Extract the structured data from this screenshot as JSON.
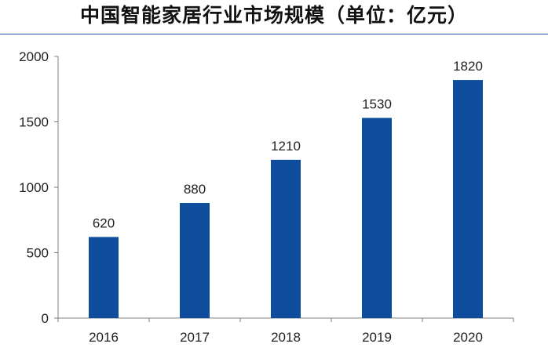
{
  "chart_data": {
    "type": "bar",
    "title": "中国智能家居行业市场规模（单位：亿元）",
    "categories": [
      "2016",
      "2017",
      "2018",
      "2019",
      "2020"
    ],
    "values": [
      620,
      880,
      1210,
      1530,
      1820
    ],
    "data_labels": [
      "620",
      "880",
      "1210",
      "1530",
      "1820"
    ],
    "y_ticks": [
      "0",
      "500",
      "1000",
      "1500",
      "2000"
    ],
    "ylim": [
      0,
      2000
    ],
    "xlabel": "",
    "ylabel": "",
    "grid": false,
    "legend": "none",
    "bar_color": "#0e4d9c",
    "title_rule_color": "#2e58a8"
  }
}
